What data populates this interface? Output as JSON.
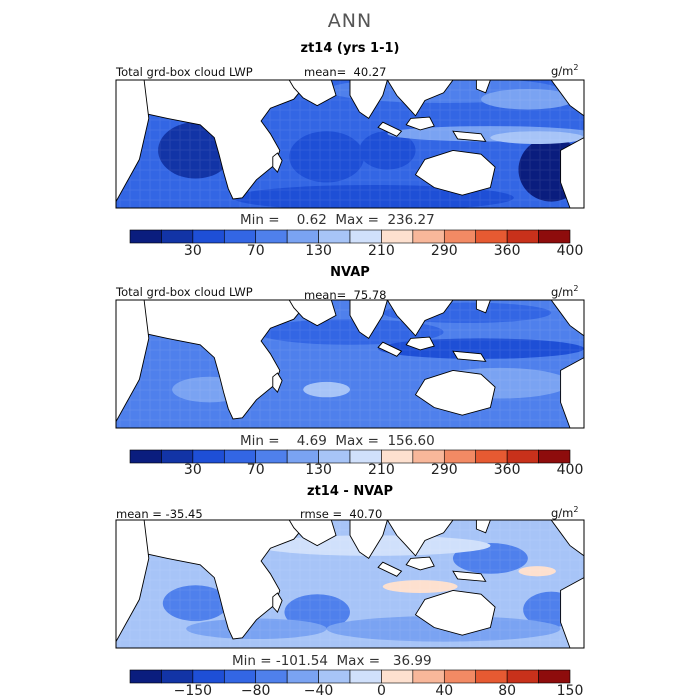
{
  "main_title": "ANN",
  "palette": {
    "model": [
      "#0a1d7e",
      "#1234a6",
      "#1e4fd6",
      "#3366e4",
      "#4f80ec",
      "#7aa3f2",
      "#a7c4f7",
      "#d0e0fb",
      "#fde0cf",
      "#f8b79a",
      "#f28a64",
      "#e65a32",
      "#c8311b",
      "#8e0c0c"
    ],
    "diff": [
      "#0a1d7e",
      "#1234a6",
      "#1e4fd6",
      "#3366e4",
      "#4f80ec",
      "#7aa3f2",
      "#a7c4f7",
      "#d0e0fb",
      "#fde0cf",
      "#f8b79a",
      "#f28a64",
      "#e65a32",
      "#c8311b",
      "#8e0c0c"
    ],
    "land": "#ffffff",
    "coast": "#000000"
  },
  "panels": [
    {
      "title": "zt14 (yrs 1-1)",
      "field_label": "Total grd-box cloud LWP",
      "mean_text": "mean=  40.27",
      "unit": "g/m",
      "unit_sup": "2",
      "stats": "Min =    0.62  Max =  236.27",
      "colorbar_ticks": [
        "30",
        "70",
        "130",
        "210",
        "290",
        "360",
        "400"
      ]
    },
    {
      "title": "NVAP",
      "field_label": "Total grd-box cloud LWP",
      "mean_text": "mean=  75.78",
      "unit": "g/m",
      "unit_sup": "2",
      "stats": "Min =    4.69  Max =  156.60",
      "colorbar_ticks": [
        "30",
        "70",
        "130",
        "210",
        "290",
        "360",
        "400"
      ]
    },
    {
      "title": "zt14 - NVAP",
      "field_label": "mean = -35.45",
      "mean_text": "rmse =  40.70",
      "unit": "g/m",
      "unit_sup": "2",
      "stats": "Min = -101.54  Max =   36.99",
      "colorbar_ticks": [
        "-150",
        "-80",
        "-40",
        "0",
        "40",
        "80",
        "150"
      ]
    }
  ],
  "chart_data": [
    {
      "type": "heatmap",
      "title": "zt14 (yrs 1-1)",
      "variable": "Total grd-box cloud LWP",
      "units": "g/m2",
      "mean": 40.27,
      "min": 0.62,
      "max": 236.27,
      "colorbar_ticks": [
        30,
        70,
        130,
        210,
        290,
        360,
        400
      ]
    },
    {
      "type": "heatmap",
      "title": "NVAP",
      "variable": "Total grd-box cloud LWP",
      "units": "g/m2",
      "mean": 75.78,
      "min": 4.69,
      "max": 156.6,
      "colorbar_ticks": [
        30,
        70,
        130,
        210,
        290,
        360,
        400
      ]
    },
    {
      "type": "heatmap",
      "title": "zt14 - NVAP",
      "units": "g/m2",
      "mean": -35.45,
      "rmse": 40.7,
      "min": -101.54,
      "max": 36.99,
      "colorbar_ticks": [
        -150,
        -80,
        -40,
        0,
        40,
        80,
        150
      ]
    }
  ]
}
